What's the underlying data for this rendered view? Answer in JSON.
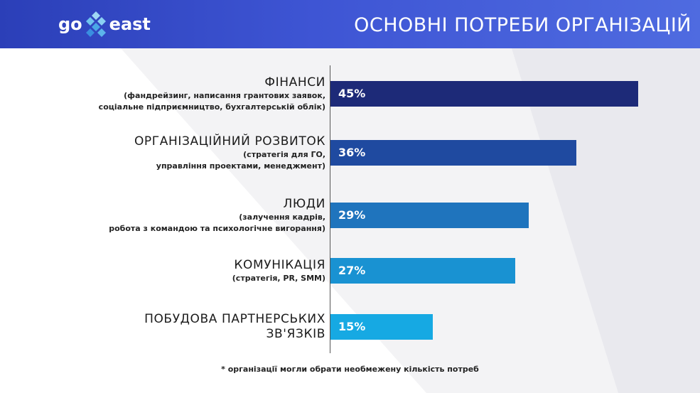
{
  "header": {
    "logo_left": "go",
    "logo_right": "east",
    "title": "ОСНОВНІ ПОТРЕБИ ОРГАНІЗАЦІЙ"
  },
  "colors": {
    "header": "#3a4fcc",
    "bars": [
      "#1d2a78",
      "#1f4aa0",
      "#1f74bd",
      "#1992d2",
      "#16a9e3"
    ]
  },
  "chart_data": {
    "type": "bar",
    "orientation": "horizontal",
    "title": "ОСНОВНІ ПОТРЕБИ ОРГАНІЗАЦІЙ",
    "categories": [
      "ФІНАНСИ",
      "ОРГАНІЗАЦІЙНИЙ РОЗВИТОК",
      "ЛЮДИ",
      "КОМУНІКАЦІЯ",
      "ПОБУДОВА ПАРТНЕРСЬКИХ ЗВ'ЯЗКІВ"
    ],
    "rows": [
      {
        "label_lines": [
          "ФІНАНСИ"
        ],
        "sub_lines": [
          "(фандрейзинг, написання грантових заявок,",
          "соціальне підприємництво, бухгалтерській облік)"
        ],
        "value": 45,
        "value_label": "45%"
      },
      {
        "label_lines": [
          "ОРГАНІЗАЦІЙНИЙ РОЗВИТОК"
        ],
        "sub_lines": [
          "(стратегія для ГО,",
          "управління проектами, менеджмент)"
        ],
        "value": 36,
        "value_label": "36%"
      },
      {
        "label_lines": [
          "ЛЮДИ"
        ],
        "sub_lines": [
          "(залучення кадрів,",
          "робота з командою та психологічне вигорання)"
        ],
        "value": 29,
        "value_label": "29%"
      },
      {
        "label_lines": [
          "КОМУНІКАЦІЯ"
        ],
        "sub_lines": [
          "(стратегія, PR, SMM)"
        ],
        "value": 27,
        "value_label": "27%"
      },
      {
        "label_lines": [
          "ПОБУДОВА ПАРТНЕРСЬКИХ",
          "ЗВ'ЯЗКІВ"
        ],
        "sub_lines": [],
        "value": 15,
        "value_label": "15%"
      }
    ],
    "values": [
      45,
      36,
      29,
      27,
      15
    ],
    "xlim": [
      0,
      45
    ],
    "grid": false,
    "legend": "none"
  },
  "footnote": "* організації могли обрати необмежену кількість потреб"
}
